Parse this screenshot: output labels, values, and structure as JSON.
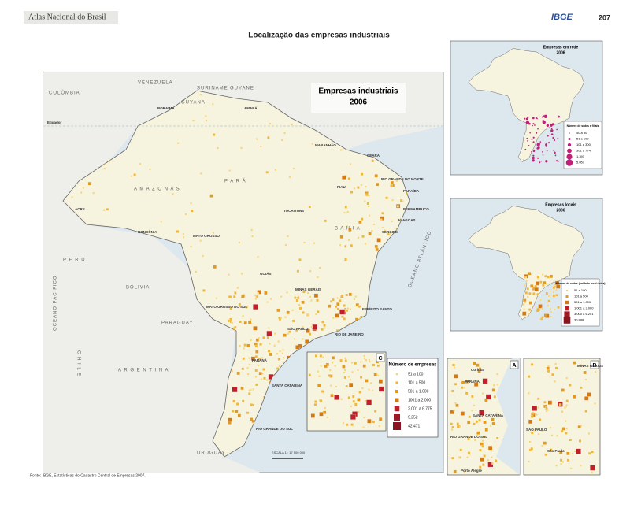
{
  "header": {
    "atlas": "Atlas Nacional do Brasil",
    "logo": "IBGE",
    "page": "207"
  },
  "title": "Localização das empresas industriais",
  "main_map": {
    "title": "Empresas industriais",
    "year": "2006",
    "legend": {
      "title": "Número de empresas",
      "items": [
        "51 a 100",
        "101 a 500",
        "501 a 1.000",
        "1001 a 2.000",
        "2.001 a 6.775",
        "9.252",
        "42.471"
      ]
    },
    "labels": [
      "VENEZUELA",
      "COLÔMBIA",
      "SURINAME",
      "GUYANE",
      "GUYANA",
      "RORAIMA",
      "AMAPÁ",
      "A M A Z O N A S",
      "P A R Á",
      "MARANHÃO",
      "CEARÁ",
      "PIAUÍ",
      "RIO GRANDE DO NORTE",
      "PARAÍBA",
      "PERNAMBUCO",
      "ALAGOAS",
      "SERGIPE",
      "B A H I A",
      "TOCANTINS",
      "ACRE",
      "RONDÔNIA",
      "MATO GROSSO",
      "GOIÁS",
      "MINAS GERAIS",
      "ESPÍRITO SANTO",
      "MATO GROSSO DO SUL",
      "SÃO PAULO",
      "RIO DE JANEIRO",
      "PARANÁ",
      "SANTA CATARINA",
      "RIO GRANDE DO SUL",
      "P E R U",
      "BOLIVIA",
      "PARAGUAY",
      "A R G E N T I N A",
      "C H I L E",
      "URUGUAY",
      "OCEANO PACÍFICO",
      "OCEANO ATLÂNTICO",
      "Equador"
    ],
    "scale": "ESCALA 1 : 17 500 000",
    "inset_letter": "C"
  },
  "insets": [
    {
      "title": "Empresas em rede",
      "year": "2006",
      "legend_title": "Número de sedes e filiais",
      "items": [
        "40 a 50",
        "51 a 100",
        "101 a 300",
        "301 a 774",
        "1.393",
        "5.057"
      ]
    },
    {
      "title": "Empresas locais",
      "year": "2006",
      "legend_title": "Número de sedes (unidade local única)",
      "items": [
        "51 a 100",
        "101 a 500",
        "501 a 1.000",
        "1.001 a 3.000",
        "3.000 a 6.201",
        "30.888"
      ]
    },
    {
      "letter": "A",
      "labels": [
        "Curitiba",
        "PARANÁ",
        "SANTA CATARINA",
        "RIO GRANDE DO SUL",
        "Porto Alegre"
      ]
    },
    {
      "letter": "B",
      "labels": [
        "MINAS GERAIS",
        "SÃO PAULO",
        "São Paulo"
      ]
    }
  ],
  "source": "Fonte: IBGE, Estatísticas do Cadastro Central de Empresas 2007."
}
